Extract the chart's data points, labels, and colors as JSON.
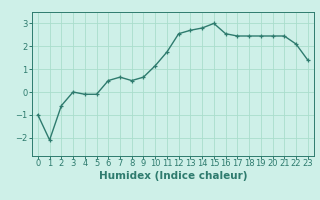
{
  "x": [
    0,
    1,
    2,
    3,
    4,
    5,
    6,
    7,
    8,
    9,
    10,
    11,
    12,
    13,
    14,
    15,
    16,
    17,
    18,
    19,
    20,
    21,
    22,
    23
  ],
  "y": [
    -1.0,
    -2.1,
    -0.6,
    0.0,
    -0.1,
    -0.1,
    0.5,
    0.65,
    0.5,
    0.65,
    1.15,
    1.75,
    2.55,
    2.7,
    2.8,
    3.0,
    2.55,
    2.45,
    2.45,
    2.45,
    2.45,
    2.45,
    2.1,
    1.4
  ],
  "line_color": "#2e7b6e",
  "marker": "+",
  "markersize": 3.5,
  "linewidth": 1.0,
  "xlabel": "Humidex (Indice chaleur)",
  "xlim": [
    -0.5,
    23.5
  ],
  "ylim": [
    -2.8,
    3.5
  ],
  "yticks": [
    -2,
    -1,
    0,
    1,
    2,
    3
  ],
  "xticks": [
    0,
    1,
    2,
    3,
    4,
    5,
    6,
    7,
    8,
    9,
    10,
    11,
    12,
    13,
    14,
    15,
    16,
    17,
    18,
    19,
    20,
    21,
    22,
    23
  ],
  "bg_color": "#cef0e8",
  "grid_color": "#aaddcc",
  "tick_fontsize": 6,
  "xlabel_fontsize": 7.5,
  "text_color": "#2e7b6e"
}
